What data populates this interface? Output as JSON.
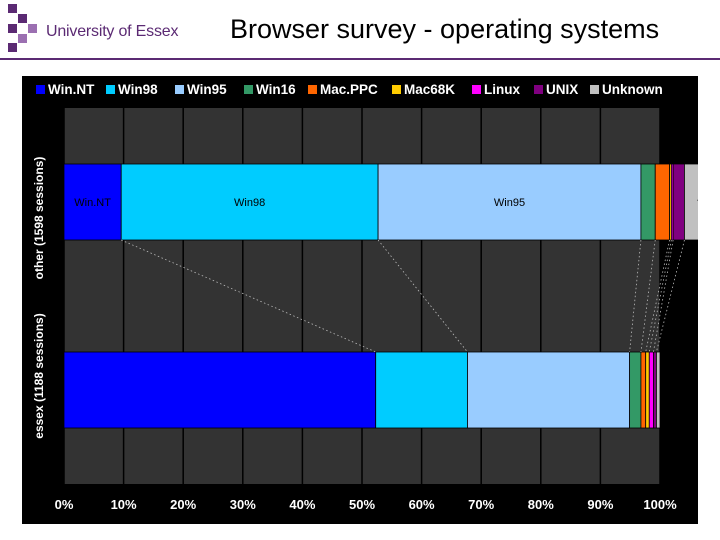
{
  "header": {
    "logo_text": "University of Essex",
    "title": "Browser survey - operating systems"
  },
  "colors": {
    "brand": "#5b2a73",
    "panel_bg": "#000000",
    "plot_bg": "#333333",
    "grid": "#000000"
  },
  "chart_data": {
    "type": "bar",
    "orientation": "horizontal",
    "stacked": "percent",
    "xlim": [
      0,
      100
    ],
    "x_ticks": [
      "0%",
      "10%",
      "20%",
      "30%",
      "40%",
      "50%",
      "60%",
      "70%",
      "80%",
      "90%",
      "100%"
    ],
    "legend_position": "top",
    "grid": true,
    "categories": [
      "other (1598 sessions)",
      "essex (1188 sessions)"
    ],
    "series": [
      {
        "name": "Win.NT",
        "color": "#0000ff",
        "values": [
          9.6,
          52.3
        ],
        "label": "Win.NT"
      },
      {
        "name": "Win98",
        "color": "#00ccff",
        "values": [
          43.1,
          15.4
        ],
        "label": "Win98"
      },
      {
        "name": "Win95",
        "color": "#99ccff",
        "values": [
          44.1,
          27.2
        ],
        "label": "Win95"
      },
      {
        "name": "Win16",
        "color": "#339966",
        "values": [
          2.4,
          1.9
        ],
        "label": ""
      },
      {
        "name": "Mac.PPC",
        "color": "#ff6600",
        "values": [
          2.4,
          0.8
        ],
        "label": ""
      },
      {
        "name": "Mac68K",
        "color": "#ffcc00",
        "values": [
          0.3,
          0.6
        ],
        "label": ""
      },
      {
        "name": "Linux",
        "color": "#ff00ff",
        "values": [
          0.3,
          0.7
        ],
        "label": ""
      },
      {
        "name": "UNIX",
        "color": "#800080",
        "values": [
          1.9,
          0.5
        ],
        "label": ""
      },
      {
        "name": "Unknown",
        "color": "#c0c0c0",
        "values": [
          5.2,
          0.6
        ],
        "label": "?"
      }
    ]
  }
}
